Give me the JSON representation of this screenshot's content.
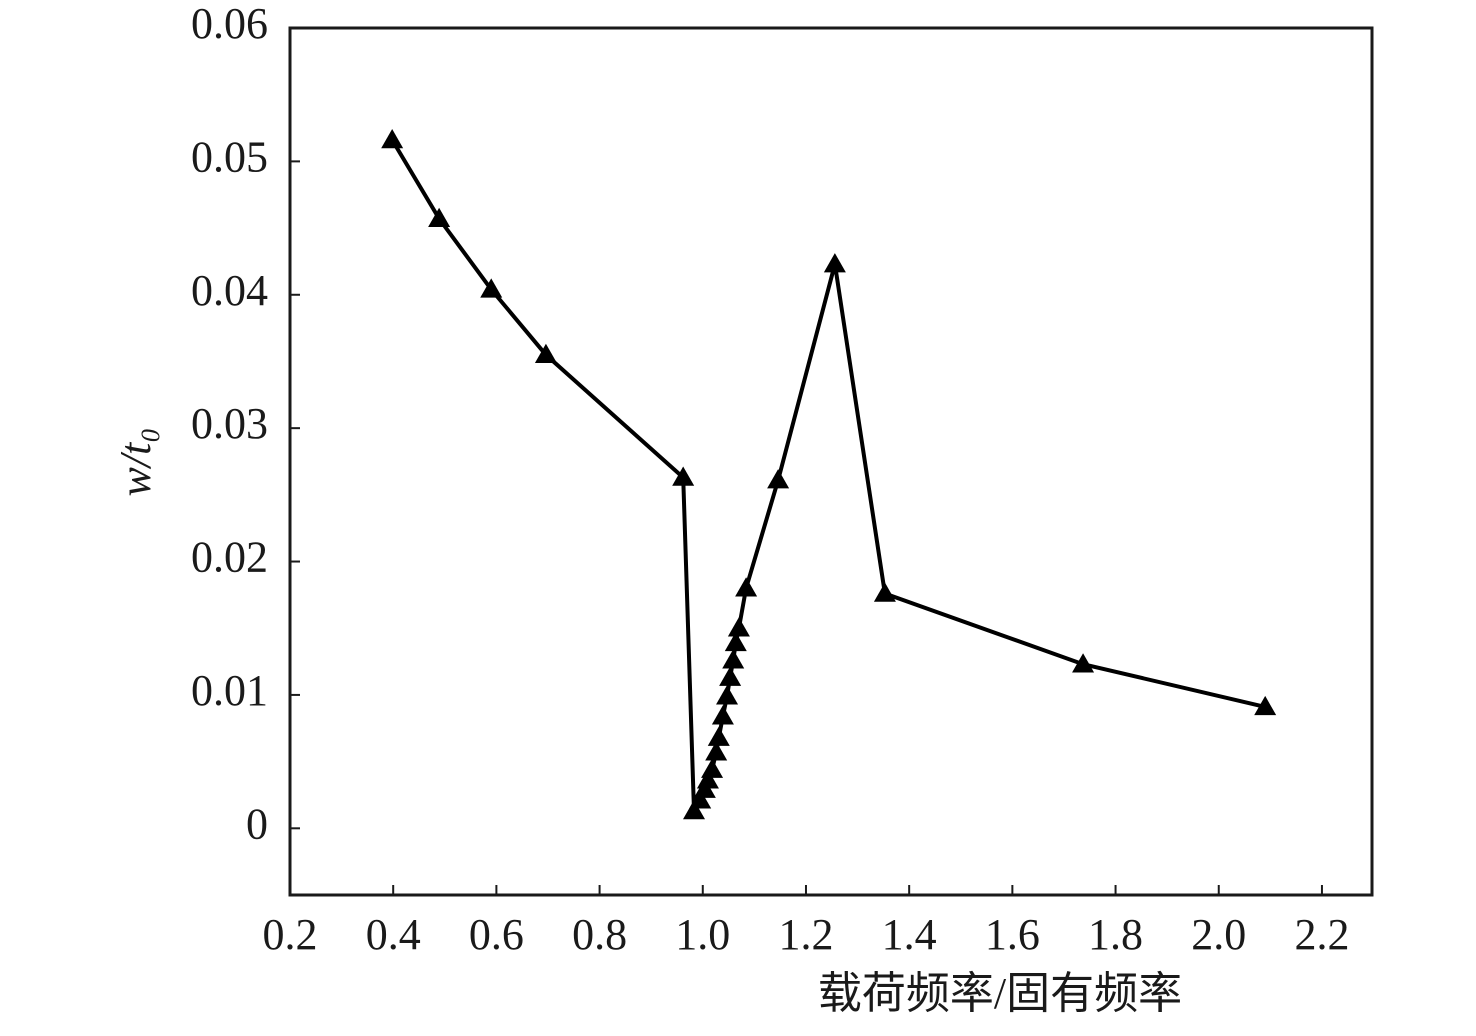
{
  "chart_data": {
    "type": "line",
    "ylabel": "w/t₀",
    "xlabel": "载荷频率/固有频率",
    "x": [
      0.398,
      0.489,
      0.59,
      0.696,
      0.962,
      0.983,
      0.995,
      1.004,
      1.01,
      1.018,
      1.026,
      1.031,
      1.039,
      1.047,
      1.053,
      1.059,
      1.064,
      1.07,
      1.084,
      1.146,
      1.256,
      1.353,
      1.737,
      2.09
    ],
    "values": [
      0.0516,
      0.0457,
      0.0404,
      0.0355,
      0.0263,
      0.0013,
      0.0021,
      0.0029,
      0.0036,
      0.0044,
      0.0057,
      0.0068,
      0.0084,
      0.0099,
      0.0113,
      0.0126,
      0.0139,
      0.015,
      0.018,
      0.0261,
      0.0423,
      0.0176,
      0.0123,
      0.0091
    ],
    "color": "#000000",
    "marker": "triangle",
    "xlim": [
      0.2,
      2.297
    ],
    "ylim": [
      -0.005,
      0.06
    ],
    "xticks": [
      0.2,
      0.4,
      0.6,
      0.8,
      {
        "value": 1,
        "label": "1.0"
      },
      1.2,
      1.4,
      1.6,
      1.8,
      {
        "value": 2,
        "label": "2.0"
      },
      2.2
    ],
    "yticks": [
      0,
      0.01,
      0.02,
      0.03,
      0.04,
      0.05,
      0.06
    ]
  }
}
